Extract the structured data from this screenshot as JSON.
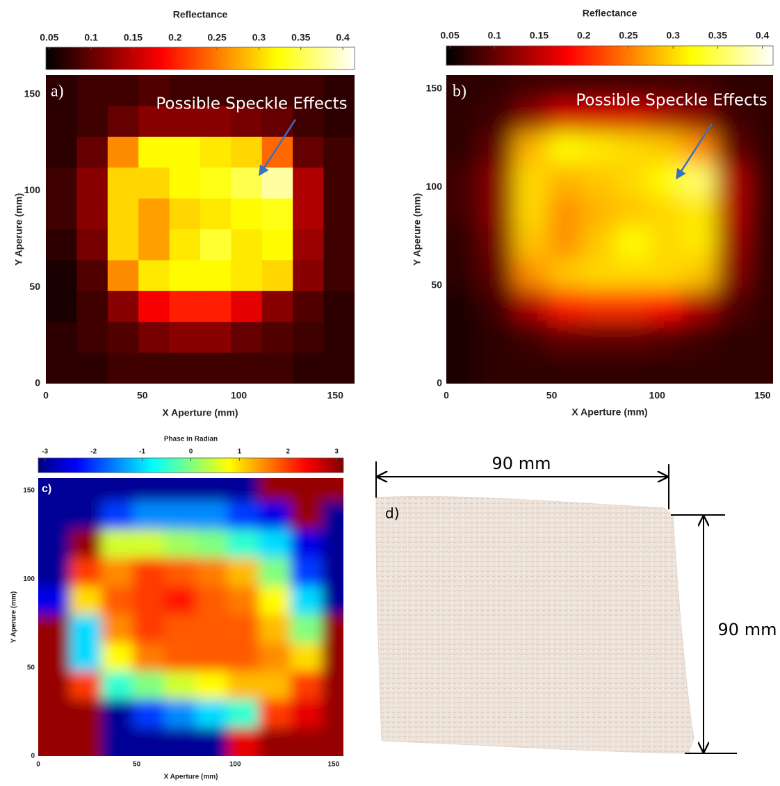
{
  "chart_data": [
    {
      "type": "heatmap",
      "title": "Reflectance",
      "panel_label": "a)",
      "annotation": "Possible Speckle Effects",
      "x_label": "X Aperture (mm)",
      "y_label": "Y Aperure (mm)",
      "colormap": "hot",
      "smooth": false,
      "xlim": [
        0,
        160
      ],
      "ylim": [
        0,
        160
      ],
      "xticks": [
        0,
        50,
        100,
        150
      ],
      "yticks": [
        0,
        50,
        100,
        150
      ],
      "zlim": [
        0.046,
        0.414
      ],
      "zticks": [
        0.05,
        0.1,
        0.15,
        0.2,
        0.25,
        0.3,
        0.35,
        0.4
      ],
      "x_bins": [
        0,
        16,
        32,
        48,
        64,
        80,
        96,
        112,
        128,
        144,
        160
      ],
      "y_bins": [
        160,
        144,
        128,
        112,
        96,
        80,
        64,
        48,
        32,
        16,
        0
      ],
      "z": [
        [
          0.07,
          0.08,
          0.08,
          0.09,
          0.08,
          0.08,
          0.08,
          0.08,
          0.08,
          0.07
        ],
        [
          0.07,
          0.08,
          0.1,
          0.12,
          0.12,
          0.12,
          0.11,
          0.1,
          0.08,
          0.07
        ],
        [
          0.07,
          0.1,
          0.26,
          0.32,
          0.32,
          0.31,
          0.3,
          0.24,
          0.1,
          0.08
        ],
        [
          0.08,
          0.12,
          0.3,
          0.3,
          0.32,
          0.33,
          0.35,
          0.38,
          0.14,
          0.08
        ],
        [
          0.08,
          0.12,
          0.3,
          0.27,
          0.3,
          0.31,
          0.32,
          0.33,
          0.14,
          0.08
        ],
        [
          0.07,
          0.11,
          0.3,
          0.27,
          0.31,
          0.34,
          0.31,
          0.32,
          0.13,
          0.08
        ],
        [
          0.06,
          0.09,
          0.26,
          0.31,
          0.32,
          0.32,
          0.31,
          0.3,
          0.12,
          0.08
        ],
        [
          0.06,
          0.08,
          0.12,
          0.18,
          0.2,
          0.2,
          0.17,
          0.12,
          0.09,
          0.07
        ],
        [
          0.07,
          0.08,
          0.09,
          0.11,
          0.12,
          0.12,
          0.1,
          0.09,
          0.08,
          0.07
        ],
        [
          0.07,
          0.07,
          0.08,
          0.08,
          0.08,
          0.08,
          0.08,
          0.08,
          0.07,
          0.07
        ]
      ]
    },
    {
      "type": "heatmap",
      "title": "Reflectance",
      "panel_label": "b)",
      "annotation": "Possible Speckle Effects",
      "x_label": "X Aperture (mm)",
      "y_label": "Y Aperure (mm)",
      "colormap": "hot",
      "smooth": true,
      "xlim": [
        0,
        155
      ],
      "ylim": [
        0,
        157
      ],
      "xticks": [
        0,
        50,
        100,
        150
      ],
      "yticks": [
        0,
        50,
        100,
        150
      ],
      "zlim": [
        0.046,
        0.412
      ],
      "zticks": [
        0.05,
        0.1,
        0.15,
        0.2,
        0.25,
        0.3,
        0.35,
        0.4
      ],
      "x_bins": [
        0,
        16,
        32,
        48,
        64,
        80,
        96,
        112,
        128,
        144,
        160
      ],
      "y_bins": [
        160,
        144,
        128,
        112,
        96,
        80,
        64,
        48,
        32,
        16,
        0
      ],
      "z": [
        [
          0.07,
          0.07,
          0.08,
          0.08,
          0.08,
          0.08,
          0.08,
          0.08,
          0.07,
          0.07
        ],
        [
          0.07,
          0.08,
          0.12,
          0.16,
          0.16,
          0.16,
          0.14,
          0.12,
          0.08,
          0.07
        ],
        [
          0.07,
          0.1,
          0.28,
          0.32,
          0.31,
          0.3,
          0.29,
          0.26,
          0.1,
          0.07
        ],
        [
          0.08,
          0.12,
          0.3,
          0.28,
          0.29,
          0.3,
          0.32,
          0.36,
          0.14,
          0.07
        ],
        [
          0.08,
          0.12,
          0.3,
          0.26,
          0.28,
          0.29,
          0.3,
          0.31,
          0.14,
          0.07
        ],
        [
          0.07,
          0.11,
          0.29,
          0.26,
          0.29,
          0.32,
          0.3,
          0.31,
          0.13,
          0.07
        ],
        [
          0.07,
          0.1,
          0.26,
          0.29,
          0.3,
          0.3,
          0.3,
          0.29,
          0.12,
          0.07
        ],
        [
          0.06,
          0.08,
          0.14,
          0.2,
          0.21,
          0.21,
          0.19,
          0.14,
          0.09,
          0.07
        ],
        [
          0.06,
          0.07,
          0.08,
          0.1,
          0.1,
          0.1,
          0.09,
          0.08,
          0.07,
          0.07
        ],
        [
          0.06,
          0.07,
          0.07,
          0.07,
          0.07,
          0.07,
          0.07,
          0.07,
          0.07,
          0.07
        ]
      ]
    },
    {
      "type": "heatmap",
      "title": "Phase in Radian",
      "panel_label": "c)",
      "x_label": "X Aperture (mm)",
      "y_label": "Y Aperure (mm)",
      "colormap": "jet",
      "smooth": true,
      "xlim": [
        0,
        155
      ],
      "ylim": [
        0,
        157
      ],
      "xticks": [
        0,
        50,
        100,
        150
      ],
      "yticks": [
        0,
        50,
        100,
        150
      ],
      "zlim": [
        -3.14,
        3.14
      ],
      "zticks": [
        -3,
        -2,
        -1,
        0,
        1,
        2,
        3
      ],
      "x_bins": [
        0,
        16,
        32,
        48,
        64,
        80,
        96,
        112,
        128,
        144,
        160
      ],
      "y_bins": [
        160,
        144,
        128,
        112,
        96,
        80,
        64,
        48,
        32,
        16,
        0
      ],
      "z": [
        [
          -3,
          -3,
          -3,
          -3,
          -3,
          -3,
          -3,
          3,
          3,
          3
        ],
        [
          -3,
          -3,
          -2,
          -1.5,
          -1.5,
          -1.5,
          -2,
          -2.5,
          3,
          -3
        ],
        [
          -3,
          3,
          0.5,
          0.5,
          0.2,
          0,
          -0.5,
          -1,
          -2.5,
          -3
        ],
        [
          -3,
          2,
          1.5,
          2,
          1.8,
          1.6,
          1.2,
          0,
          -2,
          -3
        ],
        [
          -2.5,
          1,
          1.8,
          2,
          2.2,
          1.8,
          1.6,
          0.8,
          -1,
          -3
        ],
        [
          3,
          -1,
          1.5,
          2,
          1.8,
          1.8,
          1.8,
          1.2,
          0,
          3
        ],
        [
          3,
          -1,
          0.8,
          1.6,
          1.8,
          1.8,
          1.8,
          1.5,
          1,
          3
        ],
        [
          3,
          2,
          -0.5,
          0,
          0.5,
          0.8,
          1.2,
          1.2,
          2,
          3
        ],
        [
          3,
          3,
          -3,
          -2,
          -1.5,
          -1,
          -0.5,
          2,
          2.5,
          3
        ],
        [
          3,
          3,
          -3,
          -3,
          -3,
          -3,
          2.5,
          3,
          3,
          3
        ]
      ]
    }
  ],
  "photo": {
    "label": "d)",
    "width_label": "90 mm",
    "height_label": "90 mm"
  }
}
